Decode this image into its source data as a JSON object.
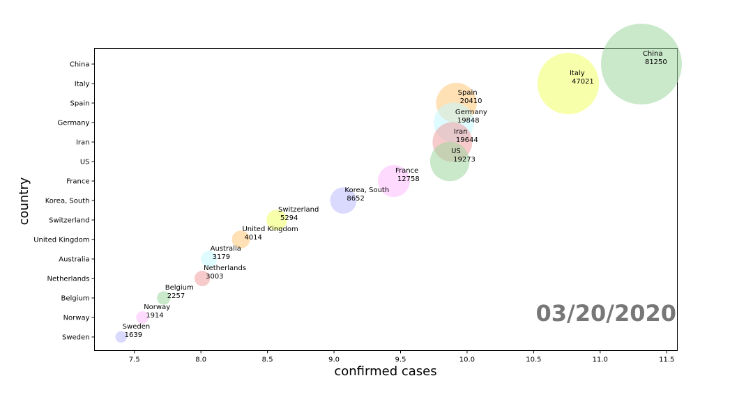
{
  "chart_data": {
    "type": "scatter",
    "xlabel": "confirmed cases",
    "ylabel": "country",
    "xlim": [
      7.2,
      11.58
    ],
    "x_ticks": [
      7.5,
      8.0,
      8.5,
      9.0,
      9.5,
      10.0,
      10.5,
      11.0,
      11.5
    ],
    "x_tick_labels": [
      "7.5",
      "8.0",
      "8.5",
      "9.0",
      "9.5",
      "10.0",
      "10.5",
      "11.0",
      "11.5"
    ],
    "categories": [
      "China",
      "Italy",
      "Spain",
      "Germany",
      "Iran",
      "US",
      "France",
      "Korea, South",
      "Switzerland",
      "United Kingdom",
      "Australia",
      "Netherlands",
      "Belgium",
      "Norway",
      "Sweden"
    ],
    "date_label": "03/20/2020",
    "points": [
      {
        "country": "China",
        "x": 11.31,
        "cases": "81250",
        "color": "#9ed69e"
      },
      {
        "country": "Italy",
        "x": 10.76,
        "cases": "47021",
        "color": "#f0ff66"
      },
      {
        "country": "Spain",
        "x": 9.92,
        "cases": "20410",
        "color": "#ffc878"
      },
      {
        "country": "Germany",
        "x": 9.9,
        "cases": "19848",
        "color": "#c3f8ff"
      },
      {
        "country": "Iran",
        "x": 9.89,
        "cases": "19644",
        "color": "#f0a0a0"
      },
      {
        "country": "US",
        "x": 9.87,
        "cases": "19273",
        "color": "#9ed69e"
      },
      {
        "country": "France",
        "x": 9.45,
        "cases": "12758",
        "color": "#ffbcff"
      },
      {
        "country": "Korea, South",
        "x": 9.07,
        "cases": "8652",
        "color": "#bcbcff"
      },
      {
        "country": "Switzerland",
        "x": 8.57,
        "cases": "5294",
        "color": "#f0ff66"
      },
      {
        "country": "United Kingdom",
        "x": 8.3,
        "cases": "4014",
        "color": "#ffc878"
      },
      {
        "country": "Australia",
        "x": 8.06,
        "cases": "3179",
        "color": "#c3f8ff"
      },
      {
        "country": "Netherlands",
        "x": 8.01,
        "cases": "3003",
        "color": "#f0a0a0"
      },
      {
        "country": "Belgium",
        "x": 7.72,
        "cases": "2257",
        "color": "#9ed69e"
      },
      {
        "country": "Norway",
        "x": 7.56,
        "cases": "1914",
        "color": "#ffbcff"
      },
      {
        "country": "Sweden",
        "x": 7.4,
        "cases": "1639",
        "color": "#bcbcff"
      }
    ]
  }
}
